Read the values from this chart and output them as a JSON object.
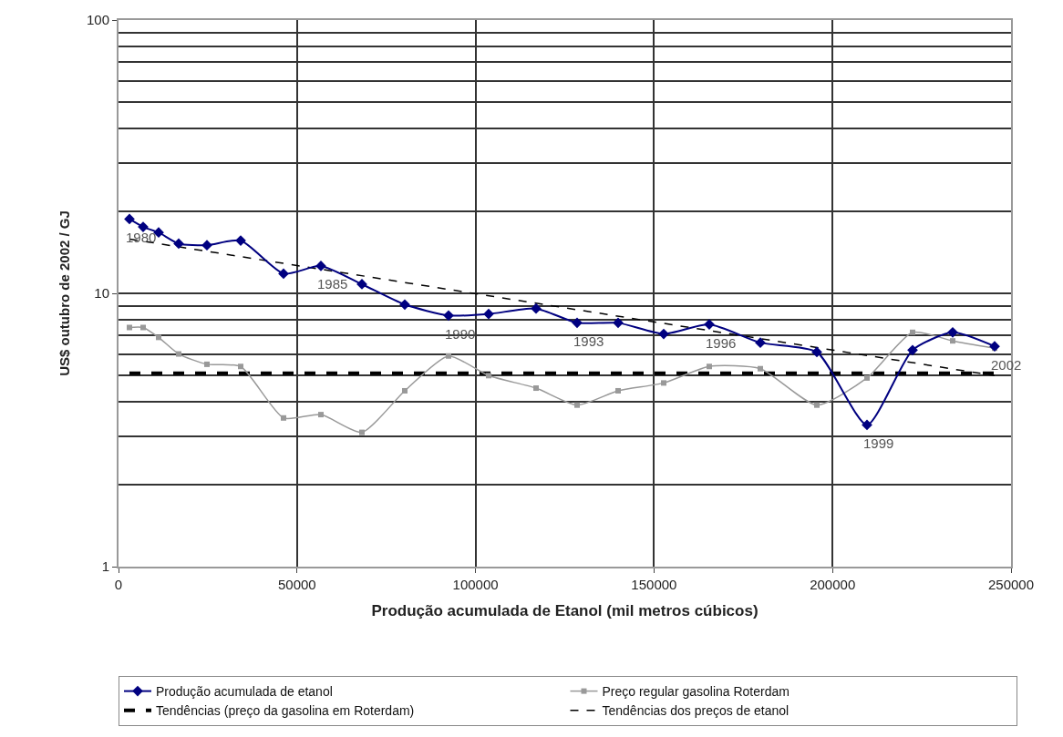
{
  "chart_data": {
    "type": "line",
    "xlabel": "Produção acumulada de Etanol (mil metros cúbicos)",
    "ylabel": "US$ outubro de 2002 / GJ",
    "xlim": [
      0,
      250000
    ],
    "xticks": [
      0,
      50000,
      100000,
      150000,
      200000,
      250000
    ],
    "ylim": [
      1,
      100
    ],
    "yticks": [
      1,
      10,
      100
    ],
    "log": "y",
    "grid": true,
    "legend": "bottom",
    "series": [
      {
        "name": "Produção acumulada de etanol",
        "color": "#000080",
        "marker": "diamond",
        "line_style": "solid",
        "x": [
          3064,
          6895,
          11236,
          16854,
          24770,
          34219,
          46221,
          56690,
          68182,
          80184,
          92441,
          103677,
          116956,
          128448,
          139939,
          152707,
          165475,
          179775,
          195608,
          209653,
          222421,
          233657,
          245404
        ],
        "values": [
          18.7,
          17.5,
          16.7,
          15.2,
          15.0,
          15.6,
          11.8,
          12.6,
          10.8,
          9.1,
          8.3,
          8.4,
          8.8,
          7.8,
          7.8,
          7.1,
          7.7,
          6.6,
          6.1,
          3.3,
          6.2,
          7.2,
          6.4
        ]
      },
      {
        "name": "Preço regular gasolina Roterdam",
        "color": "#999999",
        "marker": "square",
        "line_style": "solid",
        "x": [
          3064,
          6895,
          11236,
          16854,
          24770,
          34219,
          46221,
          56690,
          68182,
          80184,
          92441,
          103677,
          116956,
          128448,
          139939,
          152707,
          165475,
          179775,
          195608,
          209653,
          222421,
          233657,
          245404
        ],
        "values": [
          7.5,
          7.5,
          6.9,
          6.0,
          5.5,
          5.4,
          3.5,
          3.6,
          3.1,
          4.4,
          5.9,
          5.0,
          4.5,
          3.9,
          4.4,
          4.7,
          5.4,
          5.3,
          3.9,
          4.9,
          7.2,
          6.7,
          6.3
        ]
      },
      {
        "name": "Tendências (preço da gasolina em Roterdam)",
        "color": "#000000",
        "marker": "none",
        "line_style": "dashed",
        "x": [
          3064,
          245404
        ],
        "values": [
          5.1,
          5.1
        ]
      },
      {
        "name": "Tendências dos preços de etanol",
        "color": "#000000",
        "marker": "none",
        "line_style": "dashed",
        "x": [
          3064,
          245404
        ],
        "values": [
          15.8,
          5.0
        ]
      }
    ],
    "annotations": [
      {
        "text": "1980",
        "x": 3064,
        "y": 18.7
      },
      {
        "text": "1985",
        "x": 56690,
        "y": 12.6
      },
      {
        "text": "1990",
        "x": 92441,
        "y": 8.3
      },
      {
        "text": "1993",
        "x": 128448,
        "y": 7.8
      },
      {
        "text": "1996",
        "x": 165475,
        "y": 7.7
      },
      {
        "text": "1999",
        "x": 209653,
        "y": 3.3
      },
      {
        "text": "2002",
        "x": 245404,
        "y": 6.4
      }
    ]
  }
}
